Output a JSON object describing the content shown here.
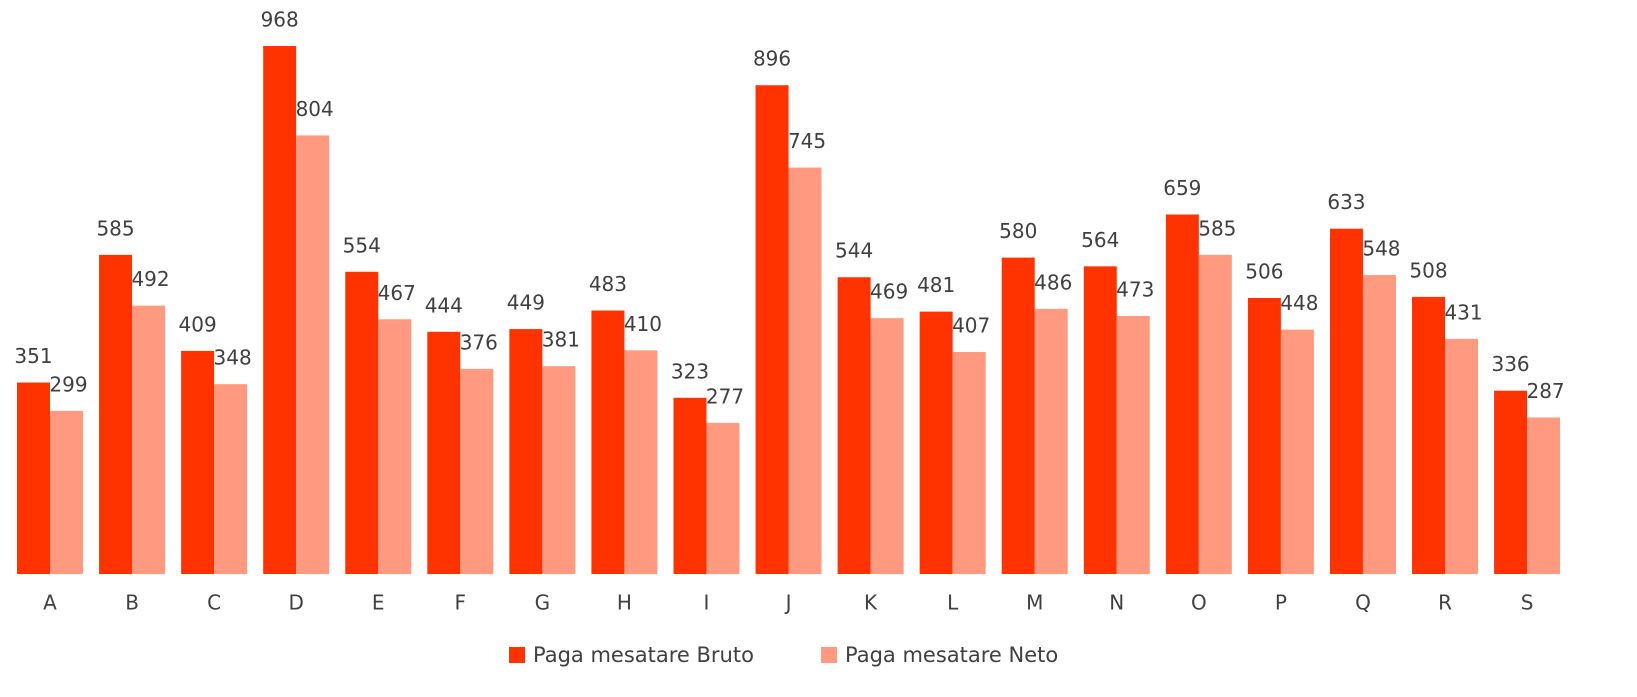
{
  "chart_data": {
    "type": "bar",
    "categories": [
      "A",
      "B",
      "C",
      "D",
      "E",
      "F",
      "G",
      "H",
      "I",
      "J",
      "K",
      "L",
      "M",
      "N",
      "O",
      "P",
      "Q",
      "R",
      "S"
    ],
    "series": [
      {
        "name": "Paga mesatare Bruto",
        "color": "#ff3300",
        "values": [
          351,
          585,
          409,
          968,
          554,
          444,
          449,
          483,
          323,
          896,
          544,
          481,
          580,
          564,
          659,
          506,
          633,
          508,
          336
        ]
      },
      {
        "name": "Paga mesatare Neto",
        "color": "#ff9a80",
        "values": [
          299,
          492,
          348,
          804,
          467,
          376,
          381,
          410,
          277,
          745,
          469,
          407,
          486,
          473,
          585,
          448,
          548,
          431,
          287
        ]
      }
    ],
    "legend": "bottom"
  }
}
